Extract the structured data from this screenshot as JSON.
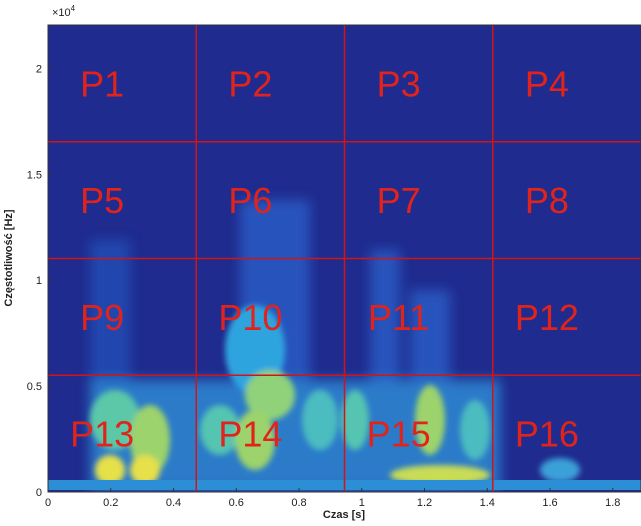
{
  "chart_data": {
    "type": "spectrogram",
    "xlabel": "Czas [s]",
    "ylabel": "Częstotliwość [Hz]",
    "y_multiplier": {
      "base": "×10",
      "exponent": "4"
    },
    "xlim": [
      0,
      1.89
    ],
    "ylim": [
      0,
      22050
    ],
    "xticks": [
      0,
      0.2,
      0.4,
      0.6,
      0.8,
      1,
      1.2,
      1.4,
      1.6,
      1.8
    ],
    "yticks": [
      {
        "value": 0,
        "label": "0"
      },
      {
        "value": 5000,
        "label": "0.5"
      },
      {
        "value": 10000,
        "label": "1"
      },
      {
        "value": 15000,
        "label": "1.5"
      },
      {
        "value": 20000,
        "label": "2"
      }
    ],
    "x_divisions": [
      0.4725,
      0.945,
      1.4175
    ],
    "y_divisions": [
      5512.5,
      11025,
      16537.5
    ],
    "division_color": "#d41414",
    "regions": [
      [
        "P1",
        "P2",
        "P3",
        "P4"
      ],
      [
        "P5",
        "P6",
        "P7",
        "P8"
      ],
      [
        "P9",
        "P10",
        "P11",
        "P12"
      ],
      [
        "P13",
        "P14",
        "P15",
        "P16"
      ]
    ]
  }
}
